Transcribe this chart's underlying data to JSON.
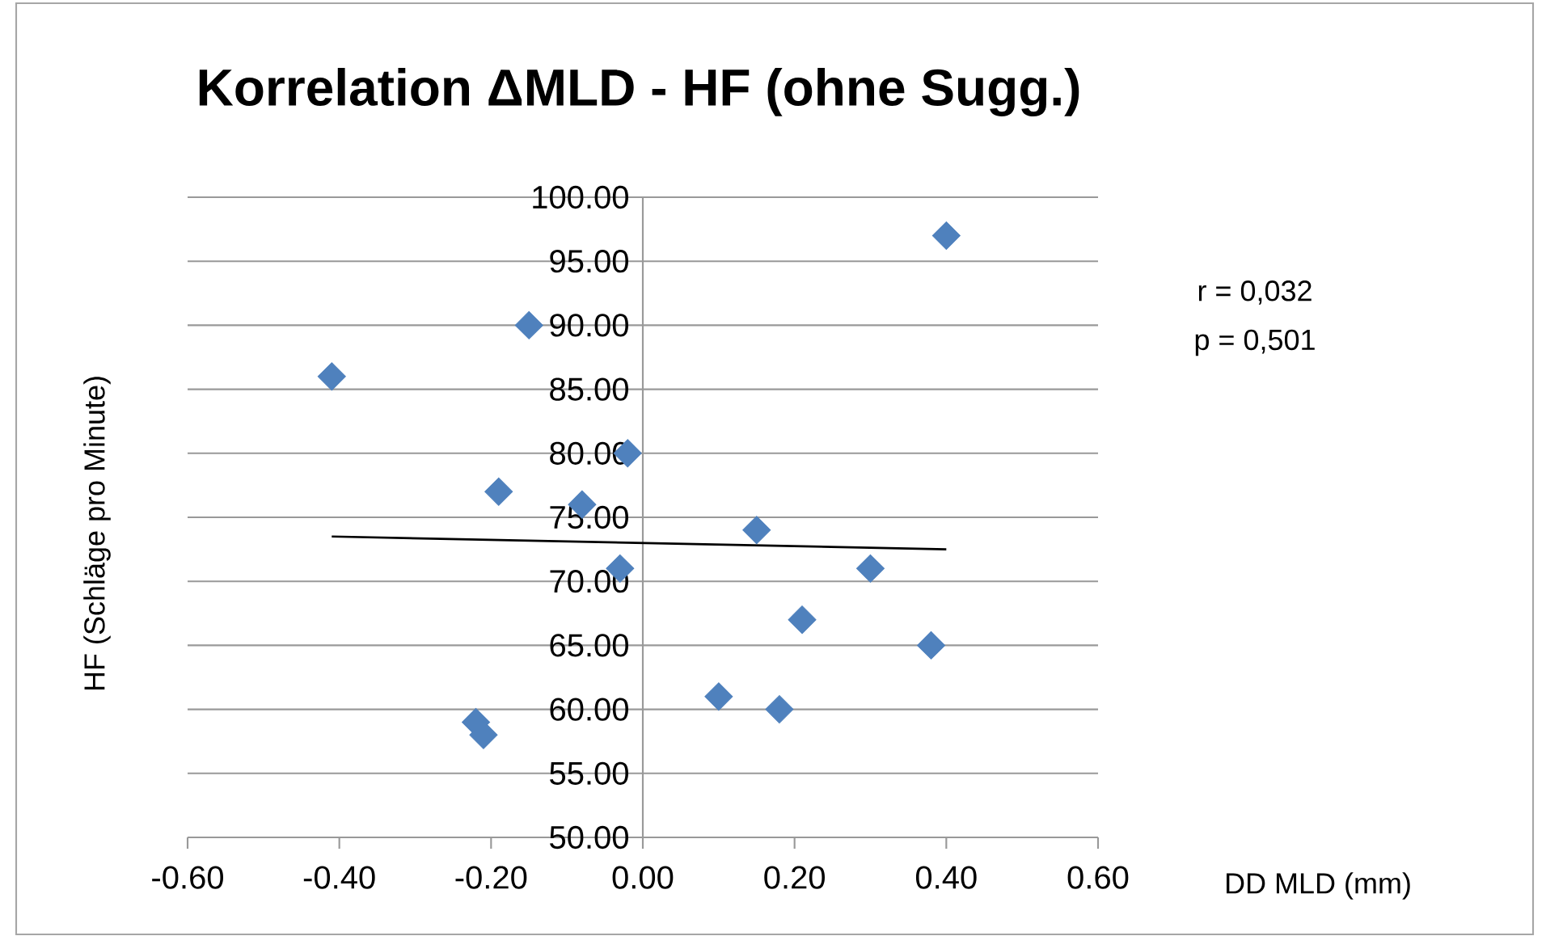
{
  "chart_data": {
    "type": "scatter",
    "title": "Korrelation ΔMLD - HF (ohne Sugg.)",
    "xlabel": "DD MLD  (mm)",
    "ylabel": "HF (Schläge  pro Minute)",
    "annotations": [
      "r = 0,032",
      "p = 0,501"
    ],
    "xlim": [
      -0.6,
      0.6
    ],
    "ylim": [
      50,
      100
    ],
    "xticks": [
      {
        "value": -0.6,
        "label": "-0.60"
      },
      {
        "value": -0.4,
        "label": "-0.40"
      },
      {
        "value": -0.2,
        "label": "-0.20"
      },
      {
        "value": 0,
        "label": "0.00"
      },
      {
        "value": 0.2,
        "label": "0.20"
      },
      {
        "value": 0.4,
        "label": "0.40"
      },
      {
        "value": 0.6,
        "label": "0.60"
      }
    ],
    "yticks": [
      {
        "value": 50,
        "label": "50.00"
      },
      {
        "value": 55,
        "label": "55.00"
      },
      {
        "value": 60,
        "label": "60.00"
      },
      {
        "value": 65,
        "label": "65.00"
      },
      {
        "value": 70,
        "label": "70.00"
      },
      {
        "value": 75,
        "label": "75.00"
      },
      {
        "value": 80,
        "label": "80.00"
      },
      {
        "value": 85,
        "label": "85.00"
      },
      {
        "value": 90,
        "label": "90.00"
      },
      {
        "value": 95,
        "label": "95.00"
      },
      {
        "value": 100,
        "label": "100.00"
      }
    ],
    "grid": "y",
    "marker": "diamond",
    "series": [
      {
        "color": "#4f81bd",
        "x": [
          -0.41,
          -0.15,
          -0.02,
          0.4,
          -0.19,
          -0.08,
          0.15,
          -0.03,
          0.3,
          0.21,
          0.38,
          0.1,
          0.18,
          -0.22,
          -0.21
        ],
        "values": [
          86,
          90,
          80,
          97,
          77,
          76,
          74,
          71,
          71,
          67,
          65,
          61,
          60,
          59,
          58
        ]
      },
      {
        "type": "line",
        "marker": "none",
        "color": "#000000",
        "x": [
          -0.41,
          0.4
        ],
        "values": [
          73.5,
          72.5
        ]
      }
    ]
  }
}
